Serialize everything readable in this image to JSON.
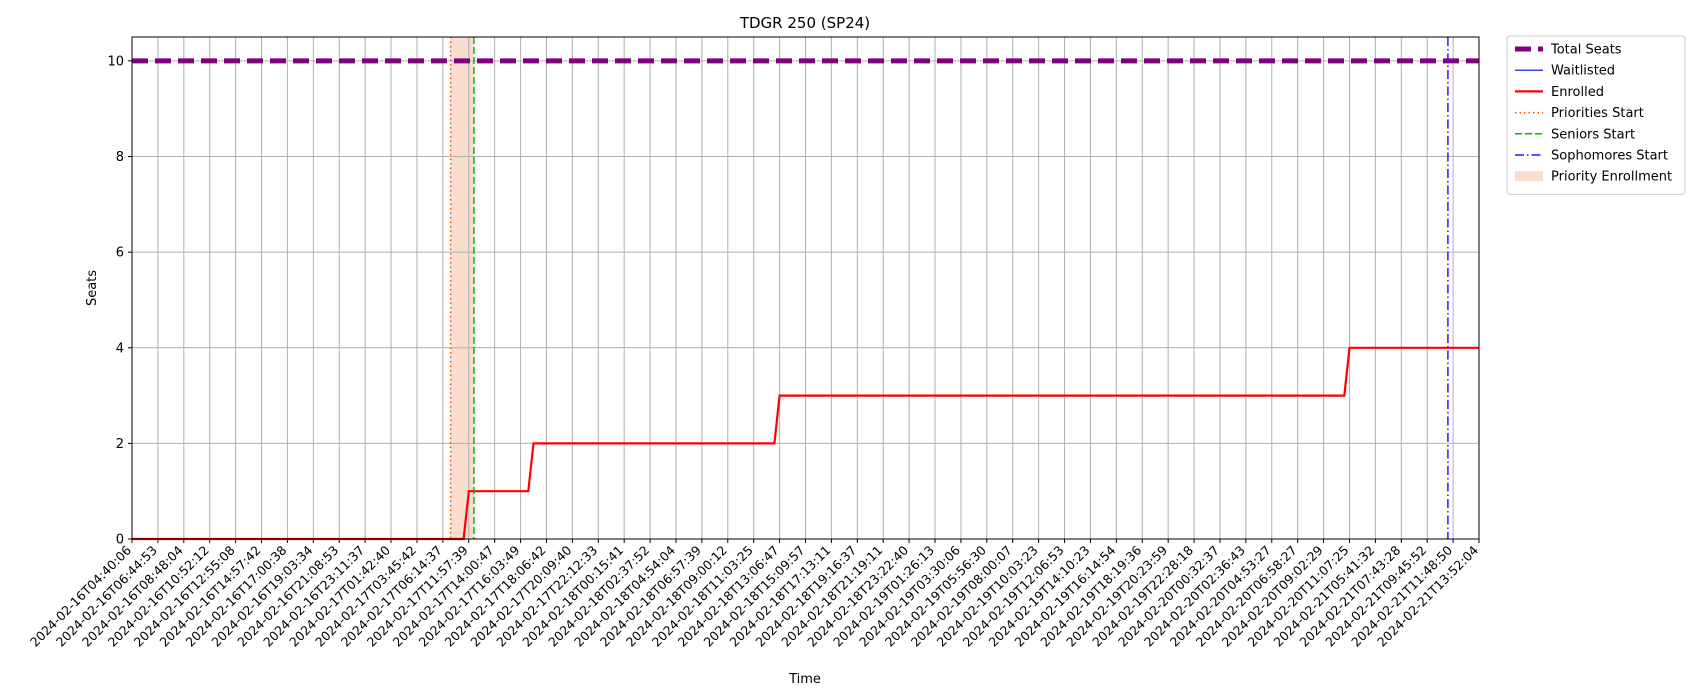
{
  "chart_data": {
    "type": "line",
    "title": "TDGR 250 (SP24)",
    "xlabel": "Time",
    "ylabel": "Seats",
    "ylim": [
      0,
      10.5
    ],
    "yticks": [
      0,
      2,
      4,
      6,
      8,
      10
    ],
    "grid": true,
    "legend_position": "outside-top-right",
    "x_ticks": [
      "2024-02-16T04:40:06",
      "2024-02-16T06:44:53",
      "2024-02-16T08:48:04",
      "2024-02-16T10:52:12",
      "2024-02-16T12:55:08",
      "2024-02-16T14:57:42",
      "2024-02-16T17:00:38",
      "2024-02-16T19:03:34",
      "2024-02-16T21:08:53",
      "2024-02-16T23:11:37",
      "2024-02-17T01:42:40",
      "2024-02-17T03:45:42",
      "2024-02-17T06:14:37",
      "2024-02-17T11:57:39",
      "2024-02-17T14:00:47",
      "2024-02-17T16:03:49",
      "2024-02-17T18:06:42",
      "2024-02-17T20:09:40",
      "2024-02-17T22:12:33",
      "2024-02-18T00:15:41",
      "2024-02-18T02:37:52",
      "2024-02-18T04:54:04",
      "2024-02-18T06:57:39",
      "2024-02-18T09:00:12",
      "2024-02-18T11:03:25",
      "2024-02-18T13:06:47",
      "2024-02-18T15:09:57",
      "2024-02-18T17:13:11",
      "2024-02-18T19:16:37",
      "2024-02-18T21:19:11",
      "2024-02-18T23:22:40",
      "2024-02-19T01:26:13",
      "2024-02-19T03:30:06",
      "2024-02-19T05:56:30",
      "2024-02-19T08:00:07",
      "2024-02-19T10:03:23",
      "2024-02-19T12:06:53",
      "2024-02-19T14:10:23",
      "2024-02-19T16:14:54",
      "2024-02-19T18:19:36",
      "2024-02-19T20:23:59",
      "2024-02-19T22:28:18",
      "2024-02-20T00:32:37",
      "2024-02-20T02:36:43",
      "2024-02-20T04:53:27",
      "2024-02-20T06:58:27",
      "2024-02-20T09:02:29",
      "2024-02-20T11:07:25",
      "2024-02-21T05:41:32",
      "2024-02-21T07:43:28",
      "2024-02-21T09:45:52",
      "2024-02-21T11:48:50",
      "2024-02-21T13:52:04"
    ],
    "series": [
      {
        "name": "Total Seats",
        "color": "#800080",
        "style": "dashed-thick",
        "points": [
          [
            0,
            10
          ],
          [
            52,
            10
          ]
        ]
      },
      {
        "name": "Waitlisted",
        "color": "#0000ff",
        "style": "solid-thin",
        "points": []
      },
      {
        "name": "Enrolled",
        "color": "#ff0000",
        "style": "solid",
        "points": [
          [
            0,
            0
          ],
          [
            12.8,
            0
          ],
          [
            13.0,
            1
          ],
          [
            15.3,
            1
          ],
          [
            15.5,
            2
          ],
          [
            24.8,
            2
          ],
          [
            25.0,
            3
          ],
          [
            46.8,
            3
          ],
          [
            47.0,
            4
          ],
          [
            52,
            4
          ]
        ]
      }
    ],
    "markers": [
      {
        "name": "Priorities Start",
        "color": "#ff4500",
        "style": "dotted",
        "x": 12.3
      },
      {
        "name": "Seniors Start",
        "color": "#00bb00",
        "style": "dashed",
        "x": 13.2
      },
      {
        "name": "Sophomores Start",
        "color": "#5500ff",
        "style": "dashdot",
        "x": 50.8
      }
    ],
    "shaded_regions": [
      {
        "name": "Priority Enrollment",
        "color": "#f4c2a8",
        "x_start": 12.3,
        "x_end": 13.2
      }
    ]
  }
}
